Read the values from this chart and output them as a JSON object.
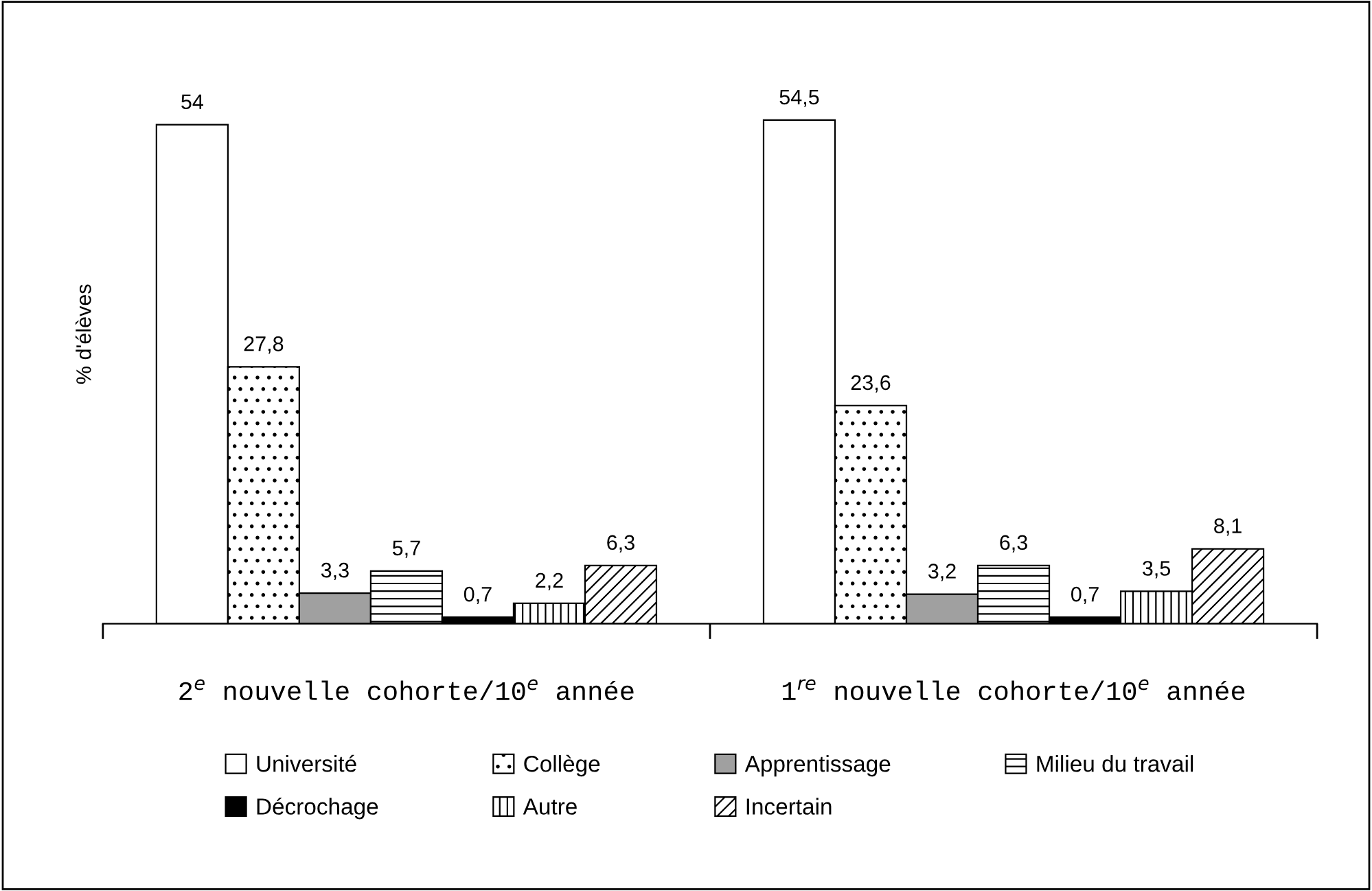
{
  "chart_data": {
    "type": "bar",
    "ylabel": "% d'élèves",
    "categories": [
      "2$^{e}$ nouvelle cohorte/10$^{e}$ année",
      "1$^{re}$ nouvelle cohorte/10$^{e}$ année"
    ],
    "series": [
      {
        "name": "Université",
        "color": "#ffffff",
        "values": [
          54,
          54.5
        ],
        "value_labels": [
          "54",
          "54,5"
        ]
      },
      {
        "name": "Collège",
        "color": "#000000",
        "values": [
          27.8,
          23.6
        ],
        "value_labels": [
          "27,8",
          "23,6"
        ]
      },
      {
        "name": "Apprentissage",
        "color": "#a0a0a0",
        "values": [
          3.3,
          3.2
        ],
        "value_labels": [
          "3,3",
          "3,2"
        ]
      },
      {
        "name": "Milieu du travail",
        "color": "#000000",
        "values": [
          5.7,
          6.3
        ],
        "value_labels": [
          "5,7",
          "6,3"
        ]
      },
      {
        "name": "Décrochage",
        "color": "#000000",
        "values": [
          0.7,
          0.7
        ],
        "value_labels": [
          "0,7",
          "0,7"
        ]
      },
      {
        "name": "Autre",
        "color": "#000000",
        "values": [
          2.2,
          3.5
        ],
        "value_labels": [
          "2,2",
          "3,5"
        ]
      },
      {
        "name": "Incertain",
        "color": "#000000",
        "values": [
          6.3,
          8.1
        ],
        "value_labels": [
          "6,3",
          "8,1"
        ]
      }
    ],
    "legend": "bottom",
    "grid": false
  }
}
